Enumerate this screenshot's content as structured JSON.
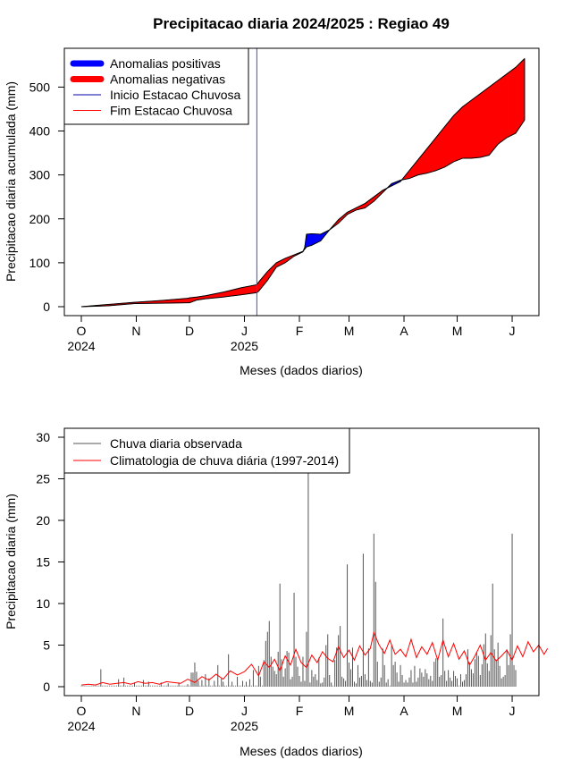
{
  "title": "Precipitacao diaria 2024/2025 : Regiao 49",
  "chart_data": [
    {
      "type": "area",
      "ylabel": "Precipitacao diaria acumulada (mm)",
      "xlabel": "Meses (dados diarios)",
      "ylim": [
        0,
        560
      ],
      "yticks": [
        0,
        100,
        200,
        300,
        400,
        500
      ],
      "month_ticks": [
        {
          "label": "O",
          "day": 0
        },
        {
          "label": "N",
          "day": 31
        },
        {
          "label": "D",
          "day": 61
        },
        {
          "label": "J",
          "day": 92
        },
        {
          "label": "F",
          "day": 123
        },
        {
          "label": "M",
          "day": 151
        },
        {
          "label": "A",
          "day": 182
        },
        {
          "label": "M",
          "day": 212
        },
        {
          "label": "J",
          "day": 243
        }
      ],
      "year_labels": [
        {
          "label": "2024",
          "day": 0
        },
        {
          "label": "2025",
          "day": 92
        }
      ],
      "rainy_season_start_day": 99,
      "legend": {
        "position": "top-left",
        "items": [
          {
            "label": "Anomalias positivas",
            "color": "#0000ff",
            "style": "thick"
          },
          {
            "label": "Anomalias negativas",
            "color": "#ff0000",
            "style": "thick"
          },
          {
            "label": "Inicio Estacao Chuvosa",
            "color": "#0000aa",
            "style": "thin"
          },
          {
            "label": "Fim Estacao Chuvosa",
            "color": "#ff0000",
            "style": "thin"
          }
        ]
      },
      "series": [
        {
          "name": "Observado",
          "x": [
            0,
            15,
            30,
            45,
            60,
            61,
            65,
            70,
            80,
            90,
            99,
            100,
            105,
            110,
            115,
            120,
            125,
            126,
            127,
            130,
            135,
            140,
            145,
            150,
            155,
            160,
            165,
            170,
            175,
            180,
            185,
            190,
            195,
            200,
            205,
            210,
            215,
            220,
            225,
            230,
            235,
            240,
            245,
            250
          ],
          "y": [
            0,
            2,
            7,
            8,
            9,
            9,
            15,
            18,
            22,
            27,
            32,
            35,
            60,
            90,
            100,
            115,
            125,
            135,
            165,
            166,
            165,
            175,
            190,
            210,
            220,
            225,
            240,
            260,
            280,
            288,
            292,
            300,
            304,
            310,
            318,
            330,
            338,
            338,
            340,
            345,
            370,
            385,
            395,
            425
          ]
        },
        {
          "name": "Climatologia",
          "x": [
            0,
            15,
            30,
            45,
            60,
            61,
            65,
            70,
            80,
            90,
            99,
            100,
            105,
            110,
            115,
            120,
            125,
            126,
            127,
            130,
            135,
            140,
            145,
            150,
            155,
            160,
            165,
            170,
            175,
            180,
            185,
            190,
            195,
            200,
            205,
            210,
            215,
            220,
            225,
            230,
            235,
            240,
            245,
            250
          ],
          "y": [
            0,
            5,
            10,
            14,
            19,
            20,
            22,
            25,
            33,
            43,
            50,
            56,
            80,
            100,
            110,
            118,
            126,
            131,
            136,
            140,
            150,
            175,
            198,
            215,
            225,
            235,
            250,
            265,
            275,
            285,
            310,
            335,
            360,
            385,
            410,
            435,
            455,
            470,
            485,
            500,
            515,
            530,
            545,
            565
          ]
        }
      ]
    },
    {
      "type": "bar",
      "ylabel": "Precipitacao diaria (mm)",
      "xlabel": "Meses (dados diarios)",
      "ylim": [
        0,
        30
      ],
      "yticks": [
        0,
        5,
        10,
        15,
        20,
        25,
        30
      ],
      "legend": {
        "position": "top-left",
        "items": [
          {
            "label": "Chuva diaria observada",
            "color": "#555555"
          },
          {
            "label": "Climatologia de chuva diária (1997-2014)",
            "color": "#ff0000"
          }
        ]
      },
      "observed": [
        [
          11,
          2.1
        ],
        [
          21,
          0.9
        ],
        [
          24,
          1.1
        ],
        [
          30,
          0.5
        ],
        [
          35,
          0.8
        ],
        [
          38,
          0.6
        ],
        [
          45,
          0.5
        ],
        [
          49,
          0.4
        ],
        [
          55,
          0.5
        ],
        [
          60,
          0.3
        ],
        [
          62,
          1.7
        ],
        [
          63,
          1.7
        ],
        [
          64,
          2.9
        ],
        [
          65,
          1.8
        ],
        [
          66,
          0.7
        ],
        [
          68,
          0.8
        ],
        [
          70,
          1.5
        ],
        [
          72,
          1.0
        ],
        [
          75,
          0.7
        ],
        [
          77,
          2.6
        ],
        [
          79,
          1.0
        ],
        [
          80,
          0.6
        ],
        [
          83,
          3.9
        ],
        [
          85,
          0.6
        ],
        [
          88,
          1.2
        ],
        [
          91,
          0.7
        ],
        [
          93,
          0.6
        ],
        [
          95,
          0.9
        ],
        [
          97,
          2.0
        ],
        [
          100,
          2.5
        ],
        [
          101,
          1.2
        ],
        [
          103,
          3.2
        ],
        [
          104,
          5.5
        ],
        [
          105,
          6.6
        ],
        [
          106,
          7.9
        ],
        [
          107,
          3.6
        ],
        [
          108,
          2.4
        ],
        [
          109,
          1.9
        ],
        [
          110,
          1.5
        ],
        [
          111,
          4.2
        ],
        [
          112,
          12.4
        ],
        [
          113,
          3.3
        ],
        [
          114,
          1.2
        ],
        [
          115,
          2.2
        ],
        [
          116,
          4.3
        ],
        [
          117,
          4.1
        ],
        [
          118,
          0.9
        ],
        [
          119,
          1.2
        ],
        [
          120,
          11.3
        ],
        [
          121,
          3.6
        ],
        [
          122,
          2.4
        ],
        [
          123,
          1.3
        ],
        [
          124,
          0.6
        ],
        [
          125,
          3.6
        ],
        [
          126,
          0.7
        ],
        [
          127,
          6.6
        ],
        [
          128,
          26.0
        ],
        [
          129,
          0.5
        ],
        [
          130,
          2.0
        ],
        [
          131,
          1.2
        ],
        [
          132,
          1.5
        ],
        [
          133,
          0.8
        ],
        [
          134,
          3.5
        ],
        [
          135,
          0.4
        ],
        [
          136,
          0.5
        ],
        [
          137,
          1.1
        ],
        [
          138,
          5.0
        ],
        [
          139,
          6.3
        ],
        [
          140,
          1.4
        ],
        [
          141,
          0.5
        ],
        [
          143,
          3.2
        ],
        [
          144,
          4.7
        ],
        [
          145,
          6.2
        ],
        [
          146,
          7.3
        ],
        [
          147,
          1.2
        ],
        [
          148,
          1.0
        ],
        [
          149,
          0.7
        ],
        [
          150,
          14.7
        ],
        [
          151,
          2.9
        ],
        [
          152,
          2.1
        ],
        [
          153,
          4.7
        ],
        [
          154,
          0.6
        ],
        [
          155,
          0.4
        ],
        [
          156,
          2.6
        ],
        [
          157,
          1.1
        ],
        [
          158,
          1.3
        ],
        [
          159,
          16.0
        ],
        [
          160,
          1.5
        ],
        [
          161,
          0.8
        ],
        [
          162,
          4.6
        ],
        [
          163,
          0.7
        ],
        [
          164,
          0.5
        ],
        [
          165,
          18.4
        ],
        [
          166,
          12.6
        ],
        [
          167,
          3.0
        ],
        [
          168,
          0.6
        ],
        [
          169,
          1.1
        ],
        [
          170,
          4.6
        ],
        [
          171,
          2.6
        ],
        [
          172,
          0.5
        ],
        [
          173,
          0.9
        ],
        [
          175,
          4.9
        ],
        [
          176,
          2.6
        ],
        [
          177,
          3.0
        ],
        [
          178,
          1.7
        ],
        [
          179,
          0.6
        ],
        [
          180,
          2.6
        ],
        [
          181,
          1.4
        ],
        [
          182,
          0.5
        ],
        [
          183,
          0.8
        ],
        [
          184,
          0.5
        ],
        [
          185,
          1.1
        ],
        [
          186,
          2.0
        ],
        [
          187,
          0.5
        ],
        [
          188,
          2.5
        ],
        [
          189,
          0.6
        ],
        [
          190,
          1.1
        ],
        [
          191,
          2.2
        ],
        [
          192,
          1.7
        ],
        [
          193,
          1.2
        ],
        [
          194,
          2.1
        ],
        [
          195,
          1.6
        ],
        [
          196,
          0.9
        ],
        [
          197,
          1.3
        ],
        [
          198,
          0.7
        ],
        [
          199,
          3.0
        ],
        [
          200,
          3.4
        ],
        [
          201,
          3.2
        ],
        [
          202,
          1.2
        ],
        [
          203,
          1.4
        ],
        [
          204,
          8.2
        ],
        [
          205,
          1.9
        ],
        [
          206,
          0.7
        ],
        [
          207,
          2.0
        ],
        [
          208,
          1.1
        ],
        [
          209,
          0.7
        ],
        [
          210,
          1.9
        ],
        [
          211,
          1.3
        ],
        [
          212,
          1.0
        ],
        [
          214,
          1.5
        ],
        [
          215,
          0.6
        ],
        [
          216,
          0.8
        ],
        [
          217,
          1.5
        ],
        [
          218,
          4.5
        ],
        [
          219,
          2.9
        ],
        [
          220,
          2.1
        ],
        [
          221,
          1.6
        ],
        [
          222,
          3.3
        ],
        [
          223,
          4.2
        ],
        [
          224,
          3.7
        ],
        [
          225,
          1.4
        ],
        [
          226,
          2.7
        ],
        [
          227,
          5.1
        ],
        [
          228,
          6.4
        ],
        [
          229,
          2.8
        ],
        [
          230,
          1.9
        ],
        [
          231,
          6.2
        ],
        [
          232,
          12.4
        ],
        [
          233,
          4.5
        ],
        [
          234,
          3.2
        ],
        [
          235,
          5.3
        ],
        [
          236,
          2.5
        ],
        [
          237,
          1.0
        ],
        [
          238,
          1.2
        ],
        [
          239,
          1.4
        ],
        [
          240,
          4.5
        ],
        [
          241,
          2.6
        ],
        [
          242,
          6.3
        ],
        [
          243,
          18.4
        ],
        [
          244,
          2.6
        ],
        [
          245,
          2.0
        ]
      ],
      "climatology": [
        [
          0,
          0.2
        ],
        [
          4,
          0.3
        ],
        [
          8,
          0.2
        ],
        [
          12,
          0.5
        ],
        [
          16,
          0.3
        ],
        [
          20,
          0.4
        ],
        [
          24,
          0.5
        ],
        [
          28,
          0.3
        ],
        [
          32,
          0.6
        ],
        [
          36,
          0.4
        ],
        [
          40,
          0.5
        ],
        [
          44,
          0.3
        ],
        [
          48,
          0.6
        ],
        [
          52,
          0.5
        ],
        [
          56,
          0.4
        ],
        [
          60,
          0.9
        ],
        [
          64,
          0.5
        ],
        [
          68,
          1.2
        ],
        [
          72,
          0.8
        ],
        [
          76,
          1.5
        ],
        [
          80,
          0.9
        ],
        [
          84,
          1.9
        ],
        [
          88,
          1.4
        ],
        [
          92,
          1.8
        ],
        [
          96,
          2.7
        ],
        [
          100,
          1.3
        ],
        [
          103,
          3.0
        ],
        [
          106,
          2.3
        ],
        [
          109,
          3.3
        ],
        [
          112,
          1.9
        ],
        [
          115,
          3.7
        ],
        [
          118,
          2.6
        ],
        [
          121,
          4.5
        ],
        [
          124,
          2.9
        ],
        [
          127,
          2.3
        ],
        [
          130,
          3.8
        ],
        [
          133,
          2.9
        ],
        [
          136,
          4.2
        ],
        [
          139,
          3.4
        ],
        [
          142,
          3.0
        ],
        [
          145,
          4.8
        ],
        [
          148,
          3.5
        ],
        [
          151,
          4.4
        ],
        [
          154,
          3.2
        ],
        [
          157,
          4.9
        ],
        [
          160,
          3.8
        ],
        [
          163,
          4.6
        ],
        [
          165,
          6.5
        ],
        [
          168,
          5.0
        ],
        [
          171,
          4.0
        ],
        [
          174,
          5.6
        ],
        [
          177,
          3.9
        ],
        [
          180,
          4.5
        ],
        [
          183,
          3.6
        ],
        [
          186,
          5.7
        ],
        [
          189,
          3.5
        ],
        [
          192,
          4.8
        ],
        [
          195,
          3.9
        ],
        [
          198,
          5.3
        ],
        [
          201,
          3.2
        ],
        [
          204,
          5.6
        ],
        [
          207,
          3.6
        ],
        [
          210,
          5.2
        ],
        [
          213,
          3.3
        ],
        [
          216,
          4.3
        ],
        [
          219,
          2.6
        ],
        [
          222,
          3.7
        ],
        [
          225,
          5.0
        ],
        [
          228,
          3.2
        ],
        [
          231,
          4.1
        ],
        [
          234,
          3.1
        ],
        [
          237,
          3.7
        ],
        [
          240,
          4.4
        ],
        [
          243,
          3.2
        ],
        [
          246,
          4.9
        ],
        [
          249,
          3.6
        ],
        [
          252,
          5.4
        ],
        [
          255,
          4.2
        ],
        [
          258,
          5.0
        ],
        [
          261,
          3.9
        ],
        [
          263,
          4.6
        ]
      ]
    }
  ]
}
